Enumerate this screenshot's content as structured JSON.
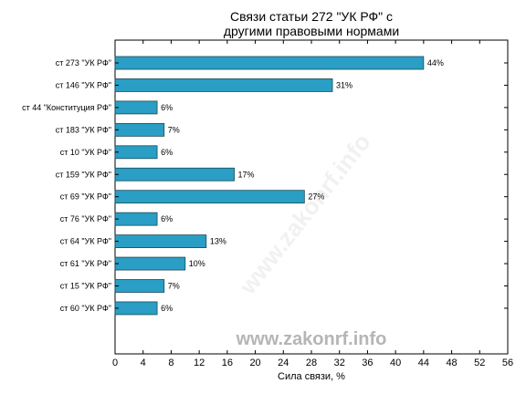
{
  "chart_data": {
    "type": "bar",
    "orientation": "horizontal",
    "title_lines": [
      "Связи статьи 272 \"УК РФ\" с",
      "другими правовыми нормами"
    ],
    "xlabel": "Сила связи, %",
    "ylabel": "",
    "xlim": [
      0,
      56
    ],
    "xticks": [
      0,
      4,
      8,
      12,
      16,
      20,
      24,
      28,
      32,
      36,
      40,
      44,
      48,
      52,
      56
    ],
    "grid": false,
    "bar_color": "#2a9ec4",
    "bar_edge_color": "#1a4a5a",
    "categories": [
      "ст 273 \"УК РФ\"",
      "ст 146 \"УК РФ\"",
      "ст 44 \"Конституция РФ\"",
      "ст 183 \"УК РФ\"",
      "ст 10 \"УК РФ\"",
      "ст 159 \"УК РФ\"",
      "ст 69 \"УК РФ\"",
      "ст 76 \"УК РФ\"",
      "ст 64 \"УК РФ\"",
      "ст 61 \"УК РФ\"",
      "ст 15 \"УК РФ\"",
      "ст 60 \"УК РФ\""
    ],
    "values": [
      44,
      31,
      6,
      7,
      6,
      17,
      27,
      6,
      13,
      10,
      7,
      6
    ],
    "value_labels": [
      "44%",
      "31%",
      "6%",
      "7%",
      "6%",
      "17%",
      "27%",
      "6%",
      "13%",
      "10%",
      "7%",
      "6%"
    ]
  },
  "watermark": "www.zakonrf.info",
  "watermark_diagonal": "www.zakonrf.info"
}
